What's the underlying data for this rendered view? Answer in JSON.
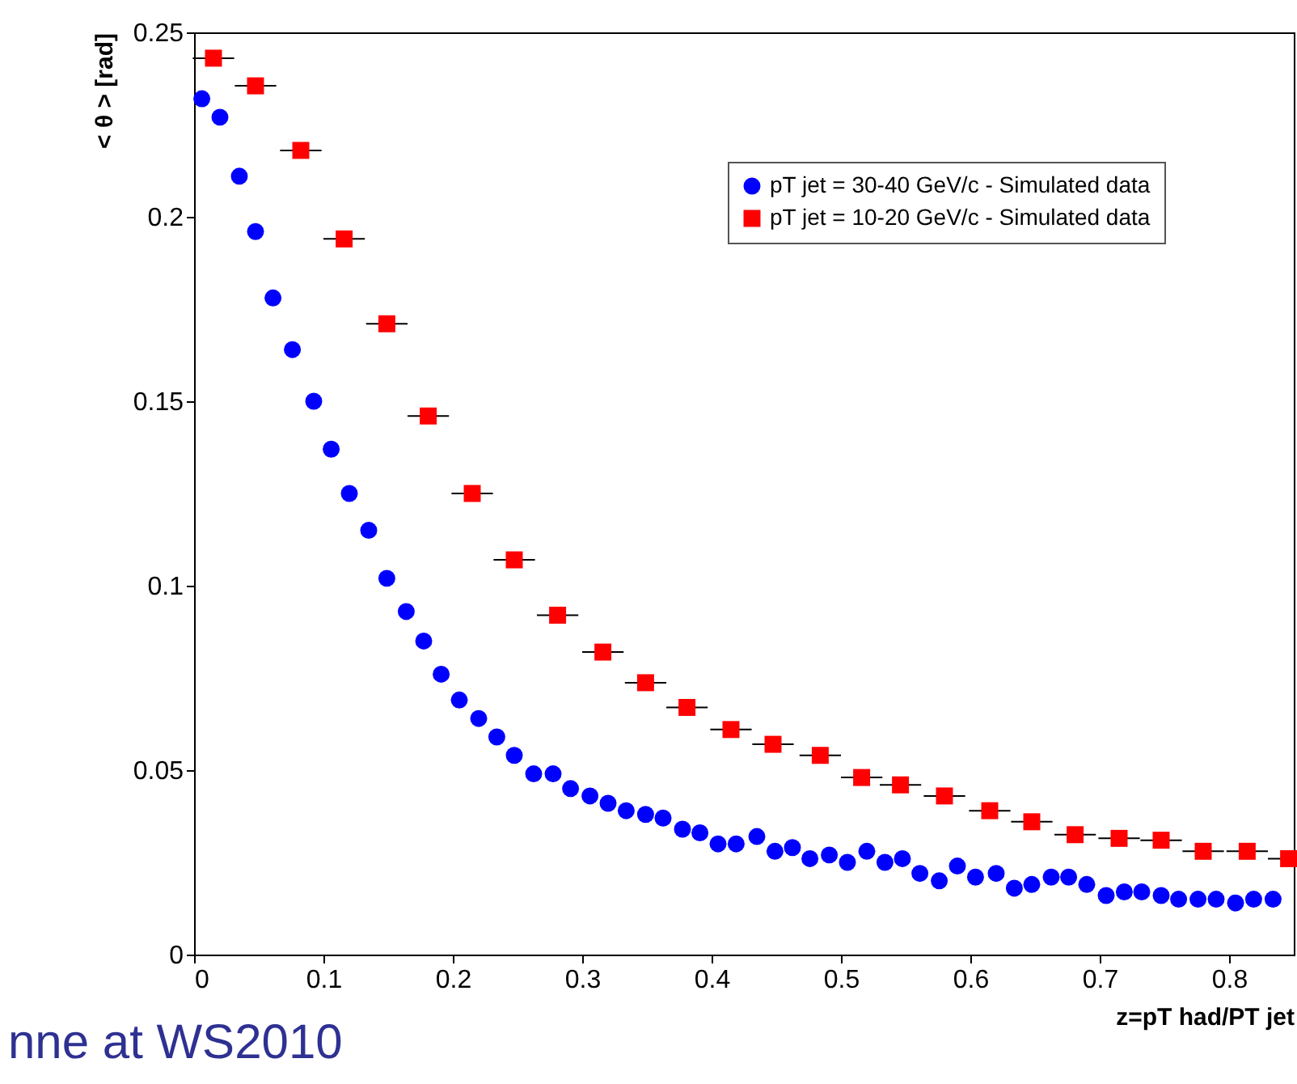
{
  "chart_data": {
    "type": "scatter",
    "xlabel": "z=pT had/PT jet",
    "ylabel": "< θ > [rad]",
    "xlim": [
      0,
      0.85
    ],
    "ylim": [
      0,
      0.25
    ],
    "xticks": [
      0,
      0.1,
      0.2,
      0.3,
      0.4,
      0.5,
      0.6,
      0.7,
      0.8
    ],
    "yticks": [
      0,
      0.05,
      0.1,
      0.15,
      0.2,
      0.25
    ],
    "legend": "top right",
    "grid": false,
    "annotations": [
      "nne at WS2010"
    ],
    "series": [
      {
        "name": "pT jet = 30-40 GeV/c - Simulated data",
        "color": "#0000ff",
        "marker": "circle",
        "x": [
          0.006,
          0.02,
          0.035,
          0.0475,
          0.061,
          0.076,
          0.0925,
          0.106,
          0.12,
          0.135,
          0.149,
          0.164,
          0.1775,
          0.191,
          0.205,
          0.22,
          0.234,
          0.2475,
          0.2625,
          0.2775,
          0.291,
          0.306,
          0.32,
          0.334,
          0.349,
          0.3625,
          0.3775,
          0.391,
          0.405,
          0.419,
          0.435,
          0.449,
          0.4625,
          0.476,
          0.491,
          0.505,
          0.52,
          0.534,
          0.5475,
          0.561,
          0.576,
          0.59,
          0.604,
          0.62,
          0.634,
          0.6475,
          0.6625,
          0.676,
          0.69,
          0.705,
          0.719,
          0.7325,
          0.7475,
          0.761,
          0.776,
          0.79,
          0.805,
          0.819,
          0.834
        ],
        "values": [
          0.232,
          0.227,
          0.211,
          0.196,
          0.178,
          0.164,
          0.15,
          0.137,
          0.125,
          0.115,
          0.102,
          0.093,
          0.085,
          0.076,
          0.069,
          0.064,
          0.059,
          0.054,
          0.049,
          0.049,
          0.045,
          0.043,
          0.041,
          0.039,
          0.038,
          0.037,
          0.034,
          0.033,
          0.03,
          0.03,
          0.032,
          0.028,
          0.029,
          0.026,
          0.027,
          0.025,
          0.028,
          0.025,
          0.026,
          0.022,
          0.02,
          0.024,
          0.021,
          0.022,
          0.018,
          0.019,
          0.021,
          0.021,
          0.019,
          0.016,
          0.017,
          0.017,
          0.016,
          0.015,
          0.015,
          0.015,
          0.014,
          0.015,
          0.015
        ]
      },
      {
        "name": "pT jet = 10-20 GeV/c - Simulated data",
        "color": "#ff0000",
        "marker": "square",
        "x": [
          0.015,
          0.0475,
          0.0825,
          0.116,
          0.149,
          0.181,
          0.215,
          0.2475,
          0.281,
          0.316,
          0.349,
          0.381,
          0.415,
          0.4475,
          0.484,
          0.516,
          0.546,
          0.58,
          0.615,
          0.6475,
          0.681,
          0.715,
          0.7475,
          0.78,
          0.814,
          0.846
        ],
        "values": [
          0.243,
          0.2355,
          0.218,
          0.194,
          0.171,
          0.146,
          0.125,
          0.107,
          0.092,
          0.082,
          0.0737,
          0.067,
          0.061,
          0.057,
          0.054,
          0.048,
          0.046,
          0.043,
          0.039,
          0.036,
          0.0325,
          0.0315,
          0.031,
          0.028,
          0.028,
          0.026
        ],
        "xerrors": [
          0.016,
          0.016,
          0.016,
          0.016,
          0.016,
          0.016,
          0.016,
          0.016,
          0.016,
          0.016,
          0.016,
          0.016,
          0.016,
          0.016,
          0.016,
          0.016,
          0.016,
          0.016,
          0.016,
          0.016,
          0.016,
          0.016,
          0.016,
          0.016,
          0.016,
          0.016
        ]
      }
    ]
  }
}
